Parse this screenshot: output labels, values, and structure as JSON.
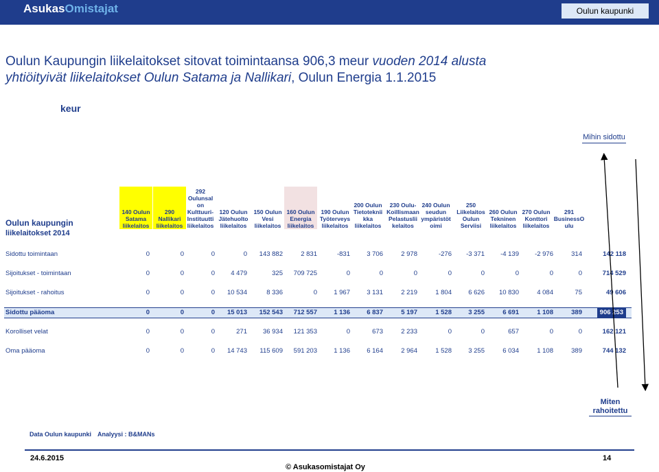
{
  "header": {
    "logo_part1": "Asukas",
    "logo_part2": "Omistajat",
    "city_button": "Oulun kaupunki"
  },
  "title": {
    "part1": "Oulun Kaupungin liikelaitokset sitovat toimintaansa 906,3 meur",
    "part2": " vuoden 2014 alusta",
    "line2_italic": "yhtiöityivät liikelaitokset Oulun Satama ja Nallikari",
    "line2_tail": ", Oulun Energia 1.1.2015"
  },
  "unit": "keur",
  "mihin_sidottu": "Mihin sidottu",
  "row_header": {
    "line1": "Oulun kaupungin",
    "line2": "liikelaitokset 2014"
  },
  "columns": [
    {
      "label": "140 Oulun Satama liikelaitos",
      "highlight": "yellow"
    },
    {
      "label": "290 Nallikari liikelaitos",
      "highlight": "yellow"
    },
    {
      "label": "292 Oulunsal on Kulttuuri- Instituutti liikelaitos",
      "highlight": ""
    },
    {
      "label": "120 Oulun Jätehuolto liikelaitos",
      "highlight": ""
    },
    {
      "label": "150 Oulun Vesi liikelaitos",
      "highlight": ""
    },
    {
      "label": "160 Oulun Energia liikelaitos",
      "highlight": "pink"
    },
    {
      "label": "190 Oulun Työterveys liikelaitos",
      "highlight": ""
    },
    {
      "label": "200 Oulun Tietoteknii kka liikelaitos",
      "highlight": ""
    },
    {
      "label": "230 Oulu- Koillismaan Pelastuslii kelaitos",
      "highlight": ""
    },
    {
      "label": "240 Oulun seudun ympäristöt oimi",
      "highlight": ""
    },
    {
      "label": "250 Liikelaitos Oulun Serviisi",
      "highlight": ""
    },
    {
      "label": "260 Oulun Tekninen liikelaitos",
      "highlight": ""
    },
    {
      "label": "270 Oulun Konttori liikelaitos",
      "highlight": ""
    },
    {
      "label": "291 BusinessO ulu",
      "highlight": ""
    }
  ],
  "rows": [
    {
      "label": "Sidottu toimintaan",
      "values": [
        "0",
        "0",
        "0",
        "0",
        "143 882",
        "2 831",
        "-831",
        "3 706",
        "2 978",
        "-276",
        "-3 371",
        "-4 139",
        "-2 976",
        "314"
      ],
      "total": "142 118",
      "style": ""
    },
    {
      "label": "Sijoitukset - toimintaan",
      "values": [
        "0",
        "0",
        "0",
        "4 479",
        "325",
        "709 725",
        "0",
        "0",
        "0",
        "0",
        "0",
        "0",
        "0",
        "0"
      ],
      "total": "714 529",
      "style": ""
    },
    {
      "label": "Sijoitukset - rahoitus",
      "values": [
        "0",
        "0",
        "0",
        "10 534",
        "8 336",
        "0",
        "1 967",
        "3 131",
        "2 219",
        "1 804",
        "6 626",
        "10 830",
        "4 084",
        "75"
      ],
      "total": "49 606",
      "style": ""
    },
    {
      "label": "Sidottu pääoma",
      "values": [
        "0",
        "0",
        "0",
        "15 013",
        "152 543",
        "712 557",
        "1 136",
        "6 837",
        "5 197",
        "1 528",
        "3 255",
        "6 691",
        "1 108",
        "389"
      ],
      "total": "906 253",
      "style": "highlight"
    },
    {
      "label": "Korolliset velat",
      "values": [
        "0",
        "0",
        "0",
        "271",
        "36 934",
        "121 353",
        "0",
        "673",
        "2 233",
        "0",
        "0",
        "657",
        "0",
        "0"
      ],
      "total": "162 121",
      "style": ""
    },
    {
      "label": "Oma pääoma",
      "values": [
        "0",
        "0",
        "0",
        "14 743",
        "115 609",
        "591 203",
        "1 136",
        "6 164",
        "2 964",
        "1 528",
        "3 255",
        "6 034",
        "1 108",
        "389"
      ],
      "total": "744 132",
      "style": ""
    }
  ],
  "miten_rahoitettu": "Miten rahoitettu",
  "source": {
    "data": "Data Oulun kaupunki",
    "analysis": "Analyysi : B&MANs"
  },
  "footer": {
    "date": "24.6.2015",
    "page": "14",
    "copyright": "© Asukasomistajat Oy"
  },
  "colors": {
    "brand_blue": "#1f3d8c",
    "light_blue": "#dde8f7",
    "yellow": "#ffff00",
    "pink": "#f2e1e2"
  }
}
